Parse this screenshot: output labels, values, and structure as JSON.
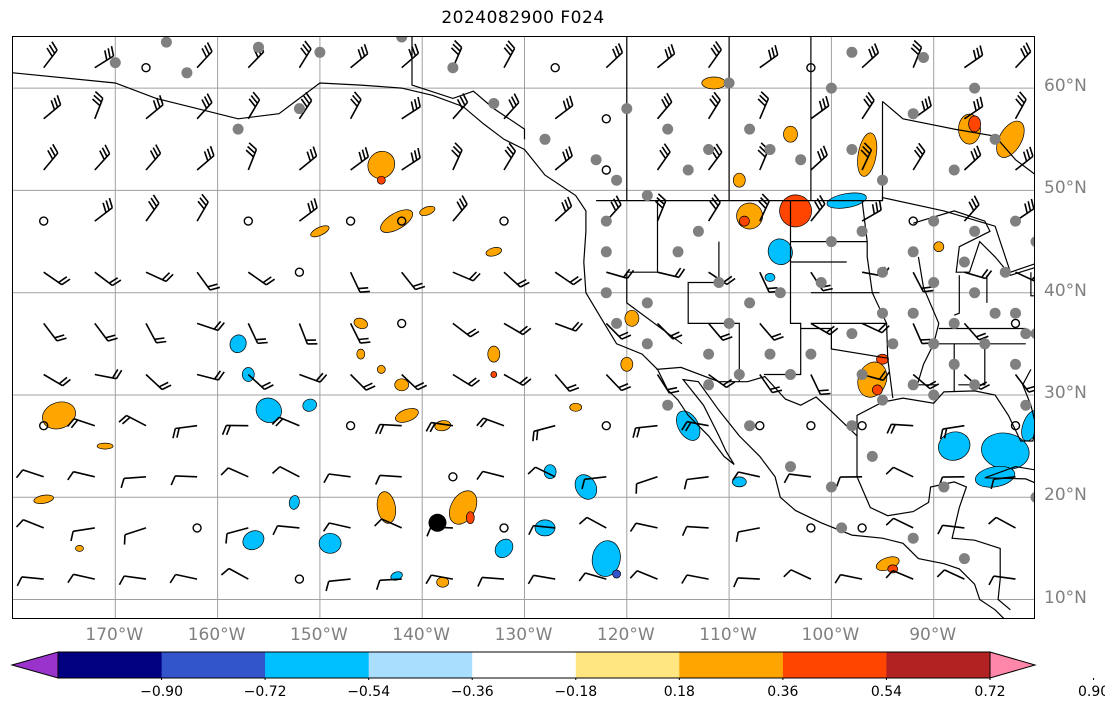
{
  "title": "2024082900 F024",
  "map": {
    "lat_labels": [
      {
        "text": "60°N",
        "lat": 60
      },
      {
        "text": "50°N",
        "lat": 50
      },
      {
        "text": "40°N",
        "lat": 40
      },
      {
        "text": "30°N",
        "lat": 30
      },
      {
        "text": "20°N",
        "lat": 20
      },
      {
        "text": "10°N",
        "lat": 10
      }
    ],
    "lon_labels": [
      {
        "text": "170°W",
        "lon": -170
      },
      {
        "text": "160°W",
        "lon": -160
      },
      {
        "text": "150°W",
        "lon": -150
      },
      {
        "text": "140°W",
        "lon": -140
      },
      {
        "text": "130°W",
        "lon": -130
      },
      {
        "text": "120°W",
        "lon": -120
      },
      {
        "text": "110°W",
        "lon": -110
      },
      {
        "text": "100°W",
        "lon": -100
      },
      {
        "text": "90°W",
        "lon": -90
      }
    ],
    "extent": {
      "lon_min": -180,
      "lon_max": -80,
      "lat_min": 8,
      "lat_max": 65
    },
    "marker": {
      "lon": -138.5,
      "lat": 17.5,
      "color": "#000000"
    }
  },
  "colorbar": {
    "tick_labels": [
      "−0.90",
      "−0.72",
      "−0.54",
      "−0.36",
      "−0.18",
      "0.18",
      "0.36",
      "0.54",
      "0.72",
      "0.90"
    ],
    "colors": [
      "#9933cc",
      "#000080",
      "#3355cc",
      "#00bfff",
      "#aadeff",
      "#ffffff",
      "#ffe680",
      "#ffa500",
      "#ff4500",
      "#b22222",
      "#ff88aa"
    ]
  }
}
